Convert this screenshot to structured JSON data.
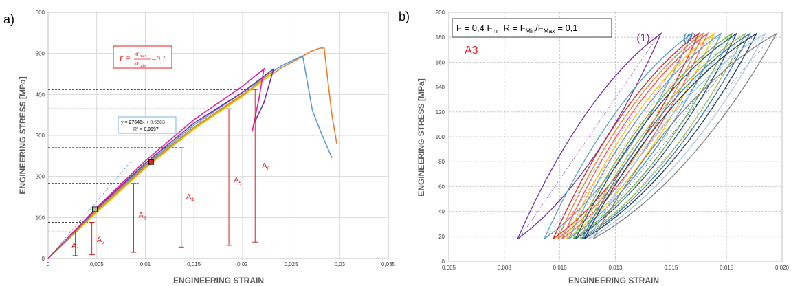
{
  "chart_data": [
    {
      "type": "line",
      "panel_label": "a)",
      "xlabel": "ENGINEERING STRAIN",
      "ylabel": "ENGINEERING STRESS [MPa]",
      "xlim": [
        0,
        0.035
      ],
      "ylim": [
        0,
        600
      ],
      "x_ticks": [
        "0",
        "0,005",
        "0,01",
        "0,015",
        "0,02",
        "0,025",
        "0,03",
        "0,035"
      ],
      "y_ticks": [
        "0",
        "100",
        "200",
        "300",
        "400",
        "500",
        "600"
      ],
      "grid": true,
      "ratio_box": {
        "r": "r",
        "eq": "=",
        "num": "σ",
        "num_sub": "max",
        "den": "σ",
        "den_sub": "min",
        "val": "=0,1"
      },
      "fit_box": {
        "equation_prefix": "y = ",
        "equation_slope": "27645",
        "equation_suffix": "x + 0,6563",
        "r2_prefix": "R² = ",
        "r2_value": "0,9997"
      },
      "fit_line": {
        "slope": 27645,
        "intercept": 0.6563,
        "x_range": [
          0,
          0.0085
        ]
      },
      "markers": [
        {
          "x": 0.0048,
          "y": 120,
          "color": "#a0c8a0"
        },
        {
          "x": 0.0106,
          "y": 235,
          "color": "#e02020"
        }
      ],
      "reference_levels": [
        {
          "y": 65,
          "x_end": 0.0032
        },
        {
          "y": 88,
          "x_end": 0.0046
        },
        {
          "y": 183,
          "x_end": 0.0093
        },
        {
          "y": 270,
          "x_end": 0.0137
        },
        {
          "y": 365,
          "x_end": 0.0188
        },
        {
          "y": 412,
          "x_end": 0.0213
        }
      ],
      "amplitudes": [
        {
          "label": "A",
          "sub": "1",
          "x": 0.0028,
          "y_min": 7,
          "y_max": 65,
          "lx": 0.0024,
          "ly": 25
        },
        {
          "label": "A",
          "sub": "2",
          "x": 0.0045,
          "y_min": 9,
          "y_max": 88,
          "lx": 0.005,
          "ly": 40
        },
        {
          "label": "A",
          "sub": "3",
          "x": 0.0088,
          "y_min": 15,
          "y_max": 183,
          "lx": 0.0093,
          "ly": 100
        },
        {
          "label": "A",
          "sub": "4",
          "x": 0.0137,
          "y_min": 28,
          "y_max": 270,
          "lx": 0.0142,
          "ly": 145
        },
        {
          "label": "A",
          "sub": "5",
          "x": 0.0186,
          "y_min": 32,
          "y_max": 365,
          "lx": 0.0191,
          "ly": 185
        },
        {
          "label": "A",
          "sub": "6",
          "x": 0.0213,
          "y_min": 40,
          "y_max": 412,
          "lx": 0.022,
          "ly": 220
        }
      ],
      "series": [
        {
          "color": "#ed7d31",
          "points": [
            [
              0,
              0
            ],
            [
              0.005,
              118
            ],
            [
              0.01,
              225
            ],
            [
              0.015,
              320
            ],
            [
              0.02,
              400
            ],
            [
              0.024,
              465
            ],
            [
              0.026,
              490
            ],
            [
              0.027,
              505
            ],
            [
              0.028,
              513
            ],
            [
              0.0284,
              513
            ],
            [
              0.0288,
              430
            ],
            [
              0.0292,
              350
            ],
            [
              0.0297,
              280
            ]
          ]
        },
        {
          "color": "#5b9bd5",
          "points": [
            [
              0,
              0
            ],
            [
              0.005,
              120
            ],
            [
              0.01,
              228
            ],
            [
              0.015,
              325
            ],
            [
              0.02,
              405
            ],
            [
              0.024,
              470
            ],
            [
              0.0262,
              494
            ],
            [
              0.0266,
              440
            ],
            [
              0.0272,
              360
            ],
            [
              0.0282,
              300
            ],
            [
              0.0292,
              245
            ]
          ]
        },
        {
          "color": "#ffc000",
          "points": [
            [
              0,
              0
            ],
            [
              0.005,
              112
            ],
            [
              0.01,
              220
            ],
            [
              0.015,
              315
            ],
            [
              0.02,
              395
            ],
            [
              0.0233,
              455
            ]
          ]
        },
        {
          "color": "#b8b020",
          "points": [
            [
              0,
              0
            ],
            [
              0.005,
              115
            ],
            [
              0.01,
              222
            ],
            [
              0.015,
              318
            ],
            [
              0.02,
              398
            ],
            [
              0.0232,
              458
            ]
          ]
        },
        {
          "color": "#7030a0",
          "points": [
            [
              0,
              0
            ],
            [
              0.005,
              122
            ],
            [
              0.01,
              232
            ],
            [
              0.015,
              330
            ],
            [
              0.02,
              405
            ],
            [
              0.0232,
              462
            ],
            [
              0.0222,
              380
            ],
            [
              0.0212,
              330
            ]
          ]
        },
        {
          "color": "#e020a0",
          "points": [
            [
              0,
              0
            ],
            [
              0.005,
              124
            ],
            [
              0.01,
              238
            ],
            [
              0.015,
              338
            ],
            [
              0.02,
              420
            ],
            [
              0.0222,
              462
            ],
            [
              0.0217,
              390
            ],
            [
              0.021,
              310
            ]
          ]
        }
      ]
    },
    {
      "type": "line",
      "panel_label": "b)",
      "xlabel": "ENGINEERING STRAIN",
      "ylabel": "ENGINEERING STRESS  [MPa]",
      "xlim": [
        0.005,
        0.02
      ],
      "ylim": [
        0,
        200
      ],
      "x_ticks": [
        "0,005",
        "0,008",
        "0,010",
        "0,013",
        "0,015",
        "0,018",
        "0,020"
      ],
      "y_ticks": [
        "0",
        "20",
        "40",
        "60",
        "80",
        "100",
        "120",
        "140",
        "160",
        "180",
        "200"
      ],
      "grid": true,
      "condition": {
        "f_text": "F = 0,4 F",
        "f_sub": "m ;",
        "r_text": " R = F",
        "r_sub1": "Min",
        "r_mid": "/F",
        "r_sub2": "Max",
        "r_end": " = 0,1"
      },
      "specimen_label": "A3",
      "cycle_labels": [
        {
          "text": "(1)",
          "color": "#7030a0",
          "x": 0.01345,
          "y": 180
        },
        {
          "text": "(2)",
          "color": "#2e75b6",
          "x": 0.01555,
          "y": 180
        }
      ],
      "loops": [
        {
          "color": "#7030a0",
          "x_start": 0.0081,
          "x_end": 0.01455
        },
        {
          "color": "#5b9bd5",
          "x_start": 0.0093,
          "x_end": 0.01595
        },
        {
          "color": "#e02020",
          "x_start": 0.0097,
          "x_end": 0.01625
        },
        {
          "color": "#ed7d31",
          "x_start": 0.0099,
          "x_end": 0.01645
        },
        {
          "color": "#ff5050",
          "x_start": 0.0101,
          "x_end": 0.01665
        },
        {
          "color": "#ffc000",
          "x_start": 0.0103,
          "x_end": 0.01695
        },
        {
          "color": "#5b9bd5",
          "x_start": 0.0104,
          "x_end": 0.01725
        },
        {
          "color": "#70ad47",
          "x_start": 0.0106,
          "x_end": 0.01775
        },
        {
          "color": "#1f4e79",
          "x_start": 0.0107,
          "x_end": 0.01795
        },
        {
          "color": "#9bbb59",
          "x_start": 0.0109,
          "x_end": 0.01835
        },
        {
          "color": "#2e75b6",
          "x_start": 0.011,
          "x_end": 0.01855
        },
        {
          "color": "#203864",
          "x_start": 0.0111,
          "x_end": 0.01885
        },
        {
          "color": "#a5c8e8",
          "x_start": 0.0113,
          "x_end": 0.01925
        },
        {
          "color": "#808080",
          "x_start": 0.0115,
          "x_end": 0.01975
        }
      ],
      "loop_y_range": [
        18,
        183
      ]
    }
  ]
}
